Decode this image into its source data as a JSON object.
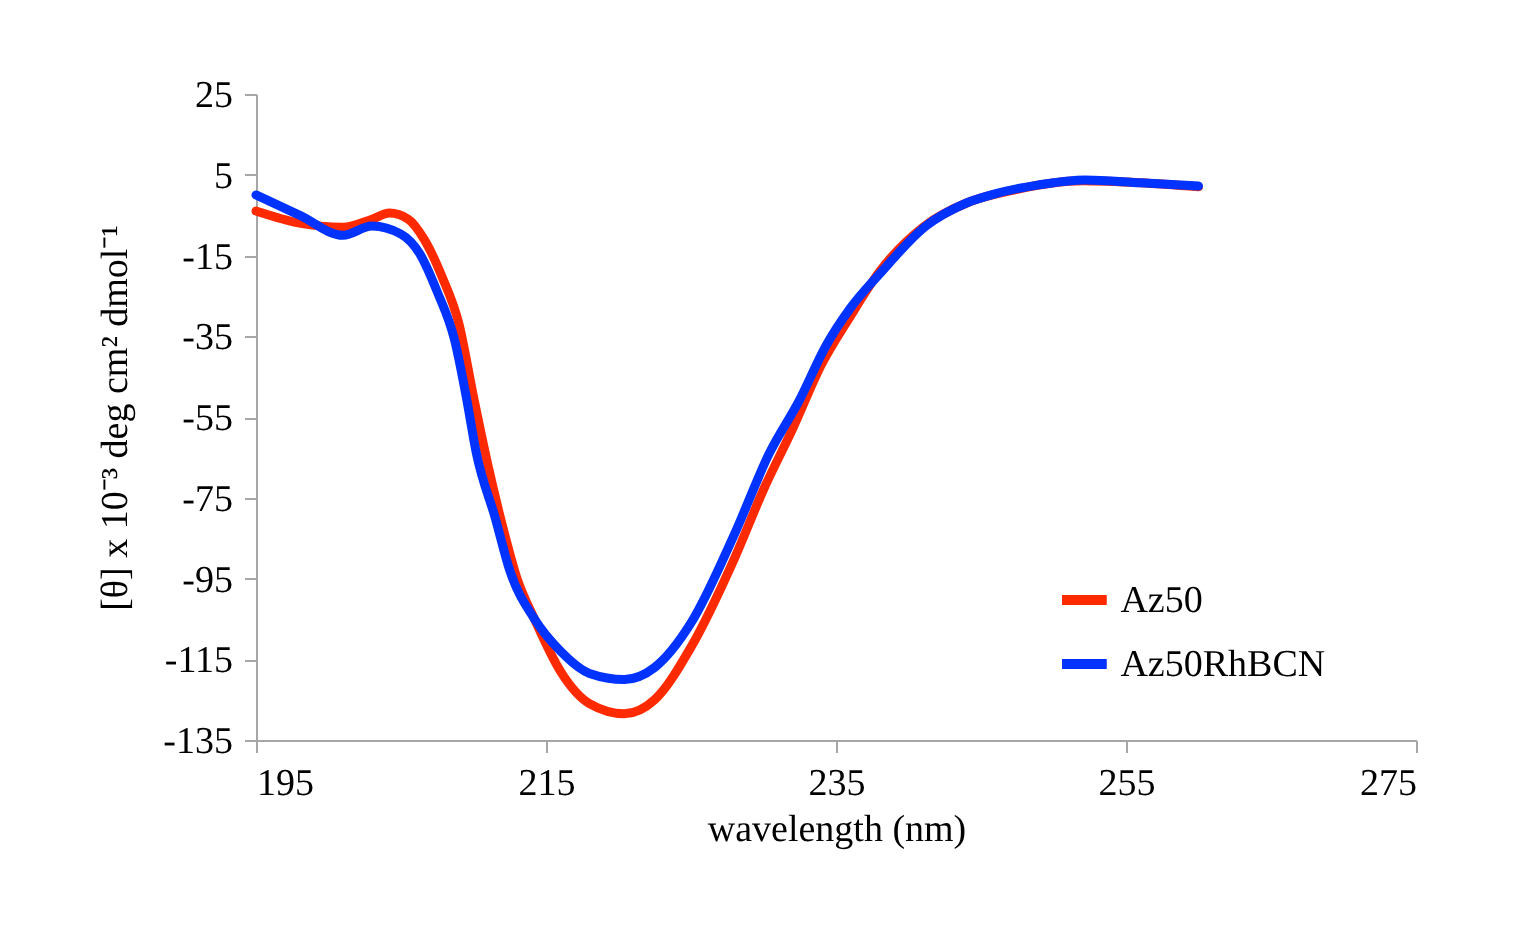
{
  "chart_data": {
    "type": "line",
    "xlabel": "wavelength (nm)",
    "ylabel": "[θ] x 10⁻³ deg cm² dmol⁻¹",
    "xlim": [
      195,
      275
    ],
    "xticks": [
      195,
      215,
      235,
      255,
      275
    ],
    "ylim": [
      -135,
      25
    ],
    "yticks": [
      25,
      5,
      -15,
      -35,
      -55,
      -75,
      -95,
      -115,
      -135
    ],
    "grid": false,
    "legend": "right",
    "marker": "none",
    "line_style": "solid",
    "series": [
      {
        "name": "Az50",
        "color": "#ff2a00",
        "x": [
          195,
          198,
          201,
          203,
          204.2,
          205.5,
          206.6,
          207.8,
          209,
          210,
          211,
          212,
          213,
          214.2,
          216,
          218,
          220.4,
          222.5,
          225,
          228,
          230,
          232,
          234,
          236,
          238,
          241,
          244,
          247,
          252,
          256,
          260
        ],
        "values": [
          -4,
          -7,
          -8,
          -6,
          -4.5,
          -6,
          -11,
          -20,
          -32,
          -50,
          -67,
          -82,
          -95,
          -105,
          -118,
          -126,
          -128.5,
          -125,
          -112,
          -90,
          -73,
          -58,
          -42,
          -30,
          -19,
          -8,
          -2,
          1,
          3.5,
          3,
          2
        ]
      },
      {
        "name": "Az50RhBCN",
        "color": "#0033ff",
        "x": [
          195,
          198,
          201,
          203,
          205,
          206.3,
          207.5,
          208.7,
          209.5,
          210.2,
          211.5,
          212.5,
          214.2,
          216,
          218,
          220.4,
          222.5,
          225,
          228,
          230.4,
          232.5,
          234.3,
          236,
          238,
          241.2,
          244,
          245.9,
          249,
          252.2,
          256,
          260
        ],
        "values": [
          0,
          -5,
          -10,
          -7.7,
          -9.7,
          -14.6,
          -24,
          -36,
          -50,
          -64,
          -80,
          -93,
          -105,
          -113,
          -118.5,
          -120,
          -117,
          -106,
          -84,
          -64,
          -50.7,
          -37.4,
          -28,
          -19.6,
          -7.7,
          -2,
          0.2,
          2.5,
          3.7,
          3,
          2.2
        ]
      }
    ]
  }
}
